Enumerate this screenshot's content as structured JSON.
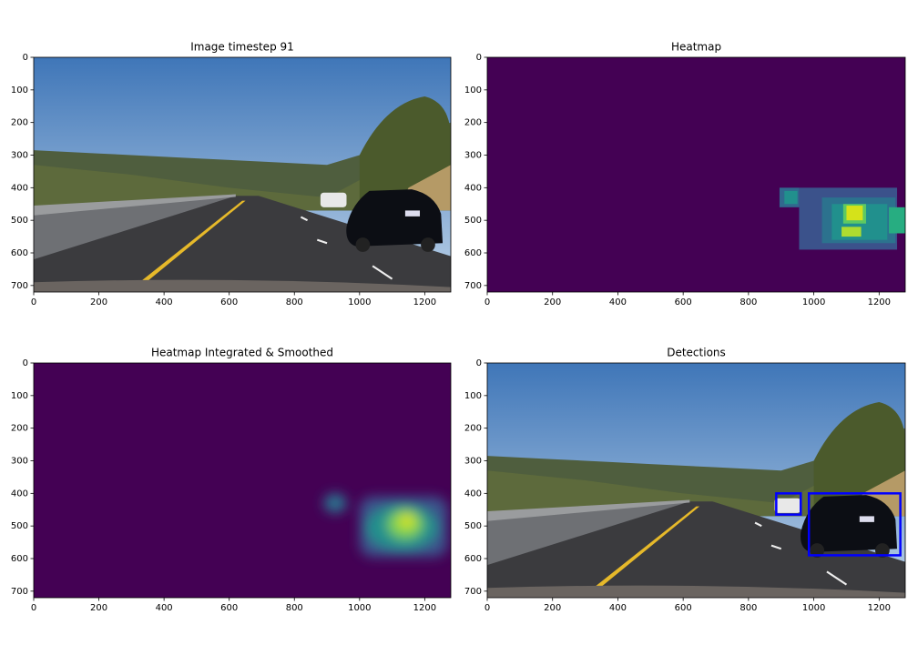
{
  "chart_data": [
    {
      "type": "image",
      "title": "Image timestep 91",
      "xlim": [
        0,
        1280
      ],
      "ylim": [
        720,
        0
      ],
      "xticks": [
        0,
        200,
        400,
        600,
        800,
        1000,
        1200
      ],
      "yticks": [
        0,
        100,
        200,
        300,
        400,
        500,
        600,
        700
      ]
    },
    {
      "type": "image",
      "title": "Heatmap",
      "xlim": [
        0,
        1280
      ],
      "ylim": [
        720,
        0
      ],
      "xticks": [
        0,
        200,
        400,
        600,
        800,
        1000,
        1200
      ],
      "yticks": [
        0,
        100,
        200,
        300,
        400,
        500,
        600,
        700
      ]
    },
    {
      "type": "image",
      "title": "Heatmap Integrated & Smoothed",
      "xlim": [
        0,
        1280
      ],
      "ylim": [
        720,
        0
      ],
      "xticks": [
        0,
        200,
        400,
        600,
        800,
        1000,
        1200
      ],
      "yticks": [
        0,
        100,
        200,
        300,
        400,
        500,
        600,
        700
      ]
    },
    {
      "type": "image",
      "title": "Detections",
      "xlim": [
        0,
        1280
      ],
      "ylim": [
        720,
        0
      ],
      "xticks": [
        0,
        200,
        400,
        600,
        800,
        1000,
        1200
      ],
      "yticks": [
        0,
        100,
        200,
        300,
        400,
        500,
        600,
        700
      ],
      "boxes": [
        {
          "x": [
            885,
            960
          ],
          "y": [
            400,
            465
          ]
        },
        {
          "x": [
            985,
            1265
          ],
          "y": [
            400,
            590
          ]
        }
      ],
      "color": "#0000ff"
    }
  ]
}
